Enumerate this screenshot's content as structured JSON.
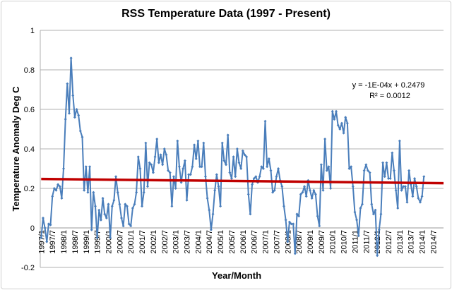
{
  "chart_data": {
    "type": "line",
    "title": "RSS Temperature Data (1997 - Present)",
    "xlabel": "Year/Month",
    "ylabel": "Temperature Anomaly Deg C",
    "ylim": [
      -0.2,
      1
    ],
    "yticks": [
      "-0.2",
      "0",
      "0.2",
      "0.4",
      "0.6",
      "0.8",
      "1"
    ],
    "grid": true,
    "legend": "none",
    "x_start": "1997/1",
    "x_ticks": [
      "1997/1",
      "1997/7",
      "1998/1",
      "1998/7",
      "1999/1",
      "1999/7",
      "2000/1",
      "2000/7",
      "2001/1",
      "2001/7",
      "2002/1",
      "2002/7",
      "2003/1",
      "2003/7",
      "2004/1",
      "2004/7",
      "2005/1",
      "2005/7",
      "2006/1",
      "2006/7",
      "2007/1",
      "2007/7",
      "2008/1",
      "2008/7",
      "2009/1",
      "2009/7",
      "2010/1",
      "2010/7",
      "2011/1",
      "2011/7",
      "2012/1",
      "2012/7",
      "2013/1",
      "2013/7",
      "2014/1",
      "2014/7"
    ],
    "series": [
      {
        "color": "#4a7ebb",
        "values": [
          -0.05,
          0.05,
          0.0,
          -0.07,
          0.02,
          0.015,
          0.16,
          0.2,
          0.19,
          0.22,
          0.21,
          0.15,
          0.3,
          0.55,
          0.73,
          0.58,
          0.86,
          0.67,
          0.56,
          0.6,
          0.57,
          0.49,
          0.46,
          0.19,
          0.31,
          0.18,
          0.31,
          -0.01,
          0.18,
          0.11,
          -0.05,
          0.09,
          0.04,
          0.15,
          0.07,
          0.05,
          0.12,
          -0.05,
          0.11,
          0.14,
          0.26,
          0.18,
          0.12,
          0.05,
          0.01,
          0.12,
          0.11,
          0.02,
          0.01,
          0.1,
          0.12,
          0.18,
          0.36,
          0.3,
          0.11,
          0.18,
          0.43,
          0.21,
          0.33,
          0.32,
          0.28,
          0.36,
          0.45,
          0.33,
          0.37,
          0.32,
          0.4,
          0.37,
          0.29,
          0.28,
          0.11,
          0.26,
          0.2,
          0.44,
          0.31,
          0.23,
          0.3,
          0.34,
          0.14,
          0.27,
          0.27,
          0.31,
          0.42,
          0.35,
          0.44,
          0.31,
          0.31,
          0.43,
          0.26,
          0.15,
          0.09,
          -0.01,
          0.07,
          0.19,
          0.27,
          0.21,
          0.11,
          0.43,
          0.34,
          0.32,
          0.47,
          0.28,
          0.25,
          0.36,
          0.26,
          0.4,
          0.33,
          0.3,
          0.39,
          0.37,
          0.36,
          0.17,
          0.07,
          0.22,
          0.25,
          0.26,
          0.23,
          0.26,
          0.31,
          0.3,
          0.54,
          0.31,
          0.35,
          0.29,
          0.18,
          0.19,
          0.26,
          0.3,
          0.24,
          0.21,
          0.11,
          0.04,
          -0.07,
          0.03,
          0.02,
          0.02,
          -0.13,
          0.07,
          0.06,
          0.17,
          0.18,
          0.21,
          0.16,
          0.24,
          0.19,
          0.15,
          0.19,
          0.17,
          0.06,
          0.01,
          0.32,
          0.19,
          0.45,
          0.29,
          0.31,
          0.2,
          0.59,
          0.55,
          0.59,
          0.52,
          0.5,
          0.53,
          0.48,
          0.56,
          0.53,
          0.3,
          0.31,
          0.21,
          0.08,
          0.04,
          -0.04,
          0.1,
          0.12,
          0.29,
          0.32,
          0.29,
          0.28,
          0.12,
          0.07,
          0.09,
          -0.14,
          -0.01,
          0.07,
          0.33,
          0.26,
          0.33,
          0.25,
          0.25,
          0.38,
          0.29,
          0.19,
          0.1,
          0.44,
          0.19,
          0.21,
          0.21,
          0.13,
          0.29,
          0.22,
          0.16,
          0.25,
          0.21,
          0.15,
          0.13,
          0.16,
          0.26
        ]
      }
    ],
    "trendline": {
      "type": "linear",
      "slope": -0.0001,
      "intercept": 0.2479,
      "color": "#c00000",
      "equation_label": "y = -1E-04x + 0.2479",
      "r2_label": "R² = 0.0012"
    }
  }
}
